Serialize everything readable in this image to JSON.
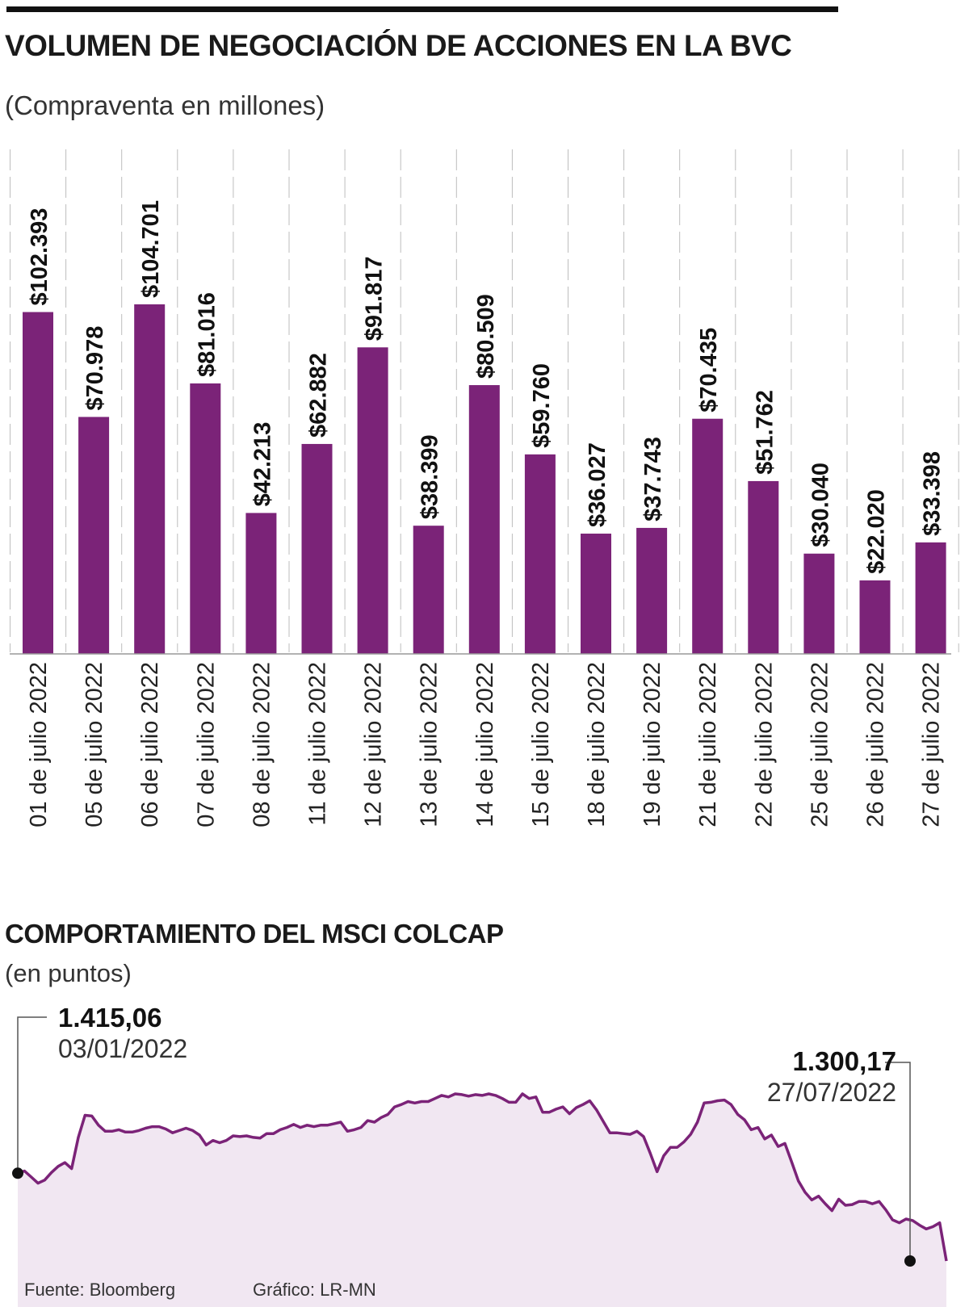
{
  "header": {
    "title": "VOLUMEN DE NEGOCIACIÓN DE ACCIONES EN LA BVC",
    "subtitle": "(Compraventa en millones)"
  },
  "colors": {
    "bar": "#7b2378",
    "line": "#7b2378",
    "area_fill": "#f1e7f2",
    "grid": "#bdbdbd"
  },
  "chart_data": [
    {
      "type": "bar",
      "title": "VOLUMEN DE NEGOCIACIÓN DE ACCIONES EN LA BVC",
      "subtitle": "(Compraventa en millones)",
      "categories": [
        "01 de julio 2022",
        "05 de julio 2022",
        "06 de julio 2022",
        "07 de julio 2022",
        "08 de julio 2022",
        "11 de julio 2022",
        "12 de julio 2022",
        "13 de julio 2022",
        "14 de julio 2022",
        "15 de julio 2022",
        "18 de julio 2022",
        "19 de julio 2022",
        "21 de julio 2022",
        "22 de julio 2022",
        "25 de julio 2022",
        "26 de julio 2022",
        "27 de julio 2022"
      ],
      "values": [
        102393,
        70978,
        104701,
        81016,
        42213,
        62882,
        91817,
        38399,
        80509,
        59760,
        36027,
        37743,
        70435,
        51762,
        30040,
        22020,
        33398
      ],
      "data_labels": [
        "$102.393",
        "$70.978",
        "$104.701",
        "$81.016",
        "$42.213",
        "$62.882",
        "$91.817",
        "$38.399",
        "$80.509",
        "$59.760",
        "$36.027",
        "$37.743",
        "$70.435",
        "$51.762",
        "$30.040",
        "$22.020",
        "$33.398"
      ],
      "ylim": [
        0,
        110000
      ],
      "grid": true
    },
    {
      "type": "area",
      "title": "COMPORTAMIENTO DEL MSCI COLCAP",
      "subtitle": "(en puntos)",
      "start": {
        "date": "03/01/2022",
        "value": 1415.06,
        "label": "1.415,06"
      },
      "end": {
        "date": "27/07/2022",
        "value": 1300.17,
        "label": "1.300,17"
      },
      "values": [
        1415,
        1418,
        1410,
        1402,
        1406,
        1416,
        1424,
        1429,
        1421,
        1462,
        1491,
        1490,
        1478,
        1470,
        1470,
        1472,
        1469,
        1469,
        1471,
        1474,
        1476,
        1476,
        1473,
        1468,
        1471,
        1474,
        1471,
        1465,
        1452,
        1458,
        1455,
        1458,
        1464,
        1463,
        1464,
        1462,
        1461,
        1467,
        1467,
        1472,
        1475,
        1479,
        1475,
        1478,
        1476,
        1478,
        1478,
        1480,
        1482,
        1470,
        1472,
        1475,
        1484,
        1482,
        1488,
        1492,
        1502,
        1505,
        1509,
        1507,
        1509,
        1509,
        1513,
        1517,
        1515,
        1519,
        1518,
        1516,
        1518,
        1517,
        1519,
        1517,
        1513,
        1508,
        1508,
        1519,
        1513,
        1515,
        1495,
        1495,
        1499,
        1502,
        1493,
        1501,
        1505,
        1510,
        1498,
        1483,
        1468,
        1468,
        1467,
        1466,
        1470,
        1463,
        1441,
        1417,
        1438,
        1449,
        1449,
        1456,
        1466,
        1482,
        1507,
        1508,
        1510,
        1511,
        1505,
        1492,
        1485,
        1472,
        1475,
        1460,
        1465,
        1450,
        1454,
        1430,
        1405,
        1390,
        1380,
        1385,
        1375,
        1366,
        1381,
        1373,
        1374,
        1378,
        1378,
        1375,
        1378,
        1367,
        1354,
        1350,
        1355,
        1353,
        1347,
        1342,
        1345,
        1350,
        1300
      ]
    }
  ],
  "section2": {
    "title": "COMPORTAMIENTO DEL MSCI COLCAP",
    "subtitle": "(en puntos)"
  },
  "footer": {
    "source": "Fuente: Bloomberg",
    "credit": "Gráfico: LR-MN"
  }
}
